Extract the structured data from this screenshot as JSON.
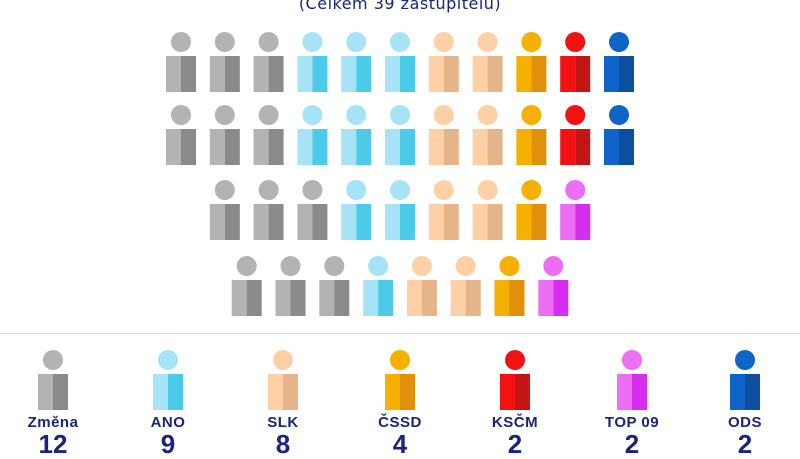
{
  "subtitle": "(Celkem 39 zastupitelů)",
  "parties": [
    {
      "name": "Změna",
      "seats": 12,
      "count_label": "12",
      "colors": {
        "head": "#b3b3b3",
        "left": "#b3b3b3",
        "right": "#8a8a8a"
      }
    },
    {
      "name": "ANO",
      "seats": 9,
      "count_label": "9",
      "colors": {
        "head": "#a6e3f7",
        "left": "#a6e3f7",
        "right": "#4ccbe9"
      }
    },
    {
      "name": "SLK",
      "seats": 8,
      "count_label": "8",
      "colors": {
        "head": "#fdd0a6",
        "left": "#fdd0a6",
        "right": "#e6b48a"
      }
    },
    {
      "name": "ČSSD",
      "seats": 4,
      "count_label": "4",
      "colors": {
        "head": "#f5b000",
        "left": "#f5b000",
        "right": "#e0900a"
      }
    },
    {
      "name": "KSČM",
      "seats": 2,
      "count_label": "2",
      "colors": {
        "head": "#f21212",
        "left": "#f21212",
        "right": "#c41515"
      }
    },
    {
      "name": "TOP 09",
      "seats": 2,
      "count_label": "2",
      "colors": {
        "head": "#ec6ef2",
        "left": "#ec6ef2",
        "right": "#d62df0"
      }
    },
    {
      "name": "ODS",
      "seats": 2,
      "count_label": "2",
      "colors": {
        "head": "#0e64c8",
        "left": "#0e64c8",
        "right": "#0b4f9e"
      }
    }
  ],
  "rows": [
    [
      "Změna",
      "Změna",
      "Změna",
      "ANO",
      "ANO",
      "ANO",
      "SLK",
      "SLK",
      "ČSSD",
      "KSČM",
      "ODS"
    ],
    [
      "Změna",
      "Změna",
      "Změna",
      "ANO",
      "ANO",
      "ANO",
      "SLK",
      "SLK",
      "ČSSD",
      "KSČM",
      "ODS"
    ],
    [
      "Změna",
      "Změna",
      "Změna",
      "ANO",
      "ANO",
      "SLK",
      "SLK",
      "ČSSD",
      "TOP 09"
    ],
    [
      "Změna",
      "Změna",
      "Změna",
      "ANO",
      "SLK",
      "SLK",
      "ČSSD",
      "TOP 09"
    ]
  ],
  "colors": {
    "text": "#1a237e",
    "divider": "#dcdcdc"
  }
}
